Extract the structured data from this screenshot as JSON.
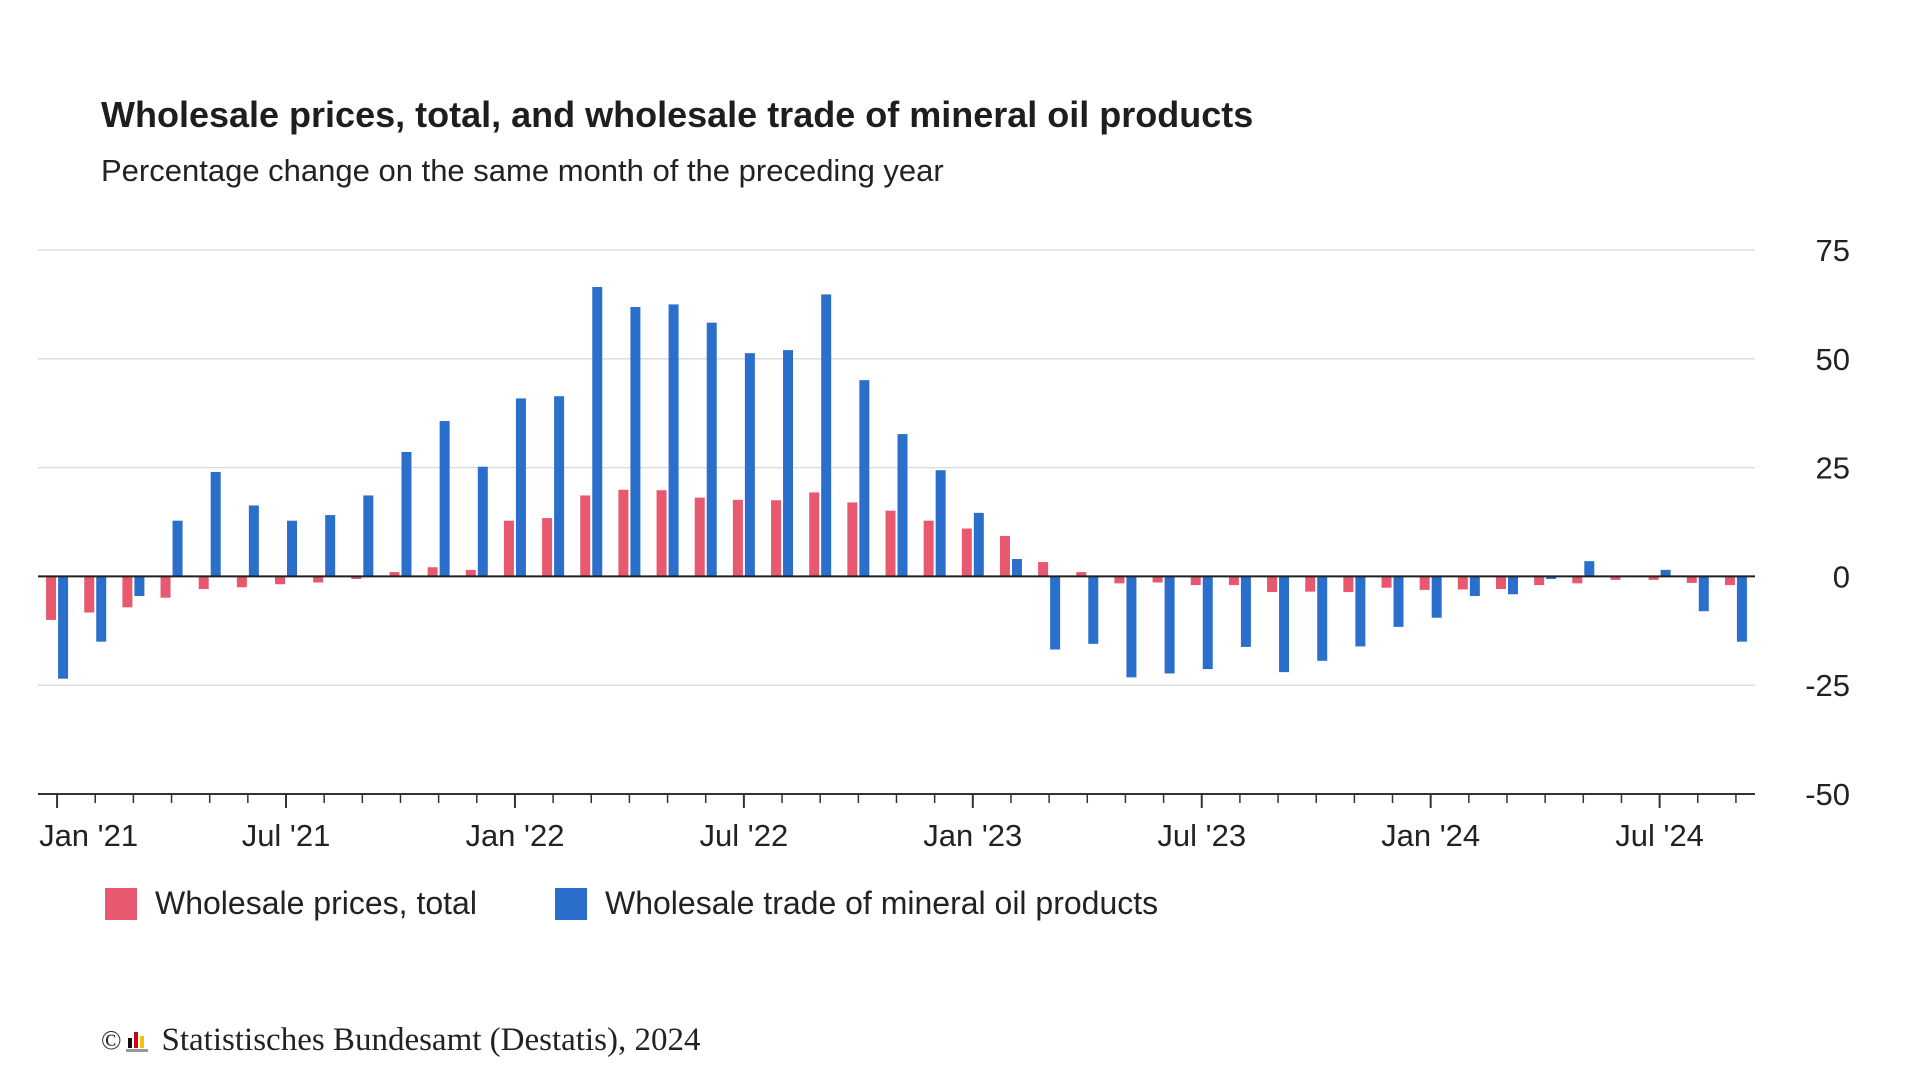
{
  "title": "Wholesale prices, total, and wholesale trade of mineral oil products",
  "subtitle": "Percentage change on the same month of the preceding year",
  "footer": {
    "copyright": "©",
    "text": "Statistisches Bundesamt (Destatis), 2024"
  },
  "colors": {
    "series_total": "#e8586e",
    "series_oil": "#2a6fcb",
    "grid": "#d9d9d9",
    "axis": "#333333"
  },
  "chart_data": {
    "type": "bar",
    "ylim": [
      -50,
      75
    ],
    "yticks": [
      75,
      50,
      25,
      0,
      -25,
      -50
    ],
    "grid": true,
    "legend_position": "bottom-left",
    "x_tick_labels": [
      {
        "label": "Jan '21",
        "index": 0
      },
      {
        "label": "Jul '21",
        "index": 6
      },
      {
        "label": "Jan '22",
        "index": 12
      },
      {
        "label": "Jul '22",
        "index": 18
      },
      {
        "label": "Jan '23",
        "index": 24
      },
      {
        "label": "Jul '23",
        "index": 30
      },
      {
        "label": "Jan '24",
        "index": 36
      },
      {
        "label": "Jul '24",
        "index": 42
      }
    ],
    "categories": [
      "2021-01",
      "2021-02",
      "2021-03",
      "2021-04",
      "2021-05",
      "2021-06",
      "2021-07",
      "2021-08",
      "2021-09",
      "2021-10",
      "2021-11",
      "2021-12",
      "2022-01",
      "2022-02",
      "2022-03",
      "2022-04",
      "2022-05",
      "2022-06",
      "2022-07",
      "2022-08",
      "2022-09",
      "2022-10",
      "2022-11",
      "2022-12",
      "2023-01",
      "2023-02",
      "2023-03",
      "2023-04",
      "2023-05",
      "2023-06",
      "2023-07",
      "2023-08",
      "2023-09",
      "2023-10",
      "2023-11",
      "2023-12",
      "2024-01",
      "2024-02",
      "2024-03",
      "2024-04",
      "2024-05",
      "2024-06",
      "2024-07",
      "2024-08",
      "2024-09"
    ],
    "series": [
      {
        "name": "Wholesale prices, total",
        "values": [
          -10.0,
          -8.3,
          -7.1,
          -4.9,
          -2.9,
          -2.5,
          -1.8,
          -1.4,
          -0.6,
          1.0,
          2.1,
          1.5,
          12.8,
          13.4,
          18.6,
          19.9,
          19.8,
          18.1,
          17.6,
          17.5,
          19.3,
          17.0,
          15.1,
          12.8,
          11.0,
          9.3,
          3.3,
          1.0,
          -1.6,
          -1.4,
          -2.0,
          -2.0,
          -3.6,
          -3.5,
          -3.6,
          -2.6,
          -3.1,
          -3.0,
          -2.9,
          -2.0,
          -1.6,
          -0.8,
          -0.8,
          -1.5,
          -2.0
        ]
      },
      {
        "name": "Wholesale trade of mineral oil products",
        "values": [
          -23.5,
          -15.0,
          -4.5,
          12.8,
          24.0,
          16.3,
          12.8,
          14.1,
          18.6,
          28.6,
          35.7,
          25.2,
          40.9,
          41.4,
          66.5,
          61.9,
          62.5,
          58.3,
          51.3,
          52.0,
          64.8,
          45.1,
          32.7,
          24.4,
          14.6,
          4.0,
          -16.8,
          -15.5,
          -23.2,
          -22.3,
          -21.3,
          -16.2,
          -22.0,
          -19.4,
          -16.1,
          -11.6,
          -9.5,
          -4.5,
          -4.1,
          -0.6,
          3.5,
          0.0,
          1.5,
          -8.0,
          -15.0
        ]
      }
    ]
  }
}
